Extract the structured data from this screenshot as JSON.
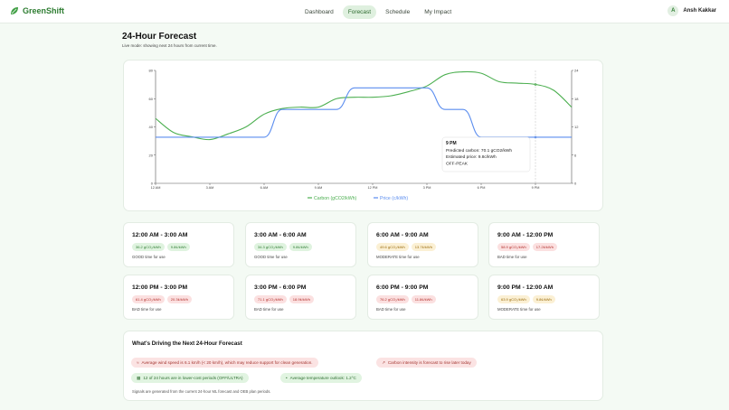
{
  "app": {
    "name": "GreenShift"
  },
  "nav": {
    "tabs": [
      {
        "label": "Dashboard",
        "active": false
      },
      {
        "label": "Forecast",
        "active": true
      },
      {
        "label": "Schedule",
        "active": false
      },
      {
        "label": "My Impact",
        "active": false
      }
    ]
  },
  "user": {
    "initial": "A",
    "name": "Ansh Kakkar"
  },
  "page": {
    "title": "24-Hour Forecast",
    "subtitle": "Live mode: showing next 24 hours from current time."
  },
  "colors": {
    "carbon": "#4caf50",
    "price": "#5b8def",
    "brand": "#2e7d32"
  },
  "chart_data": {
    "type": "line",
    "x": [
      "12 AM",
      "1 AM",
      "2 AM",
      "3 AM",
      "4 AM",
      "5 AM",
      "6 AM",
      "7 AM",
      "8 AM",
      "9 AM",
      "10 AM",
      "11 AM",
      "12 PM",
      "1 PM",
      "2 PM",
      "3 PM",
      "4 PM",
      "5 PM",
      "6 PM",
      "7 PM",
      "8 PM",
      "9 PM",
      "10 PM",
      "11 PM"
    ],
    "x_tick_labels": [
      "12 AM",
      "3 AM",
      "6 AM",
      "9 AM",
      "12 PM",
      "3 PM",
      "6 PM",
      "9 PM"
    ],
    "series": [
      {
        "name": "Carbon (gCO2/kWh)",
        "axis": "left",
        "color": "#4caf50",
        "values": [
          46,
          36,
          33,
          31,
          35,
          40,
          49,
          53,
          54,
          54,
          60,
          61,
          61,
          62,
          65,
          69,
          77,
          79,
          78,
          72,
          71,
          70.1,
          66,
          54
        ]
      },
      {
        "name": "Price (c/kWh)",
        "axis": "right",
        "color": "#5b8def",
        "values": [
          9.8,
          9.8,
          9.8,
          9.8,
          9.8,
          9.8,
          9.8,
          15.7,
          15.7,
          15.7,
          15.7,
          20.3,
          20.3,
          20.3,
          20.3,
          20.3,
          15.7,
          15.7,
          9.8,
          9.8,
          9.8,
          9.8,
          9.8,
          9.8
        ]
      }
    ],
    "y_left": {
      "ticks": [
        "0",
        "20",
        "40",
        "60",
        "80"
      ],
      "range": [
        0,
        80
      ]
    },
    "y_right": {
      "ticks": [
        "0",
        "6",
        "12",
        "18",
        "24"
      ],
      "range": [
        0,
        24
      ]
    },
    "grid": false,
    "legend_position": "bottom-center",
    "legend": [
      "Carbon (gCO2/kWh)",
      "Price (c/kWh)"
    ],
    "highlight_index": 21,
    "tooltip": {
      "title": "9 PM",
      "lines": [
        "Predicted carbon: 70.1 gCO2/kWh",
        "Estimated price: 9.8c/kWh",
        "OFF-PEAK"
      ]
    }
  },
  "slots": [
    {
      "title": "12:00 AM - 3:00 AM",
      "carbon": "36.2 gCO₂/kWh",
      "price": "9.8¢/kWh",
      "status": "GOOD time for use",
      "level": "good"
    },
    {
      "title": "3:00 AM - 6:00 AM",
      "carbon": "34.3 gCO₂/kWh",
      "price": "9.8¢/kWh",
      "status": "GOOD time for use",
      "level": "good"
    },
    {
      "title": "6:00 AM - 9:00 AM",
      "carbon": "49.6 gCO₂/kWh",
      "price": "13.7¢/kWh",
      "status": "MODERATE time for use",
      "level": "moderate"
    },
    {
      "title": "9:00 AM - 12:00 PM",
      "carbon": "58.9 gCO₂/kWh",
      "price": "17.2¢/kWh",
      "status": "BAD time for use",
      "level": "bad"
    },
    {
      "title": "12:00 PM - 3:00 PM",
      "carbon": "61.4 gCO₂/kWh",
      "price": "20.3¢/kWh",
      "status": "BAD time for use",
      "level": "bad"
    },
    {
      "title": "3:00 PM - 6:00 PM",
      "carbon": "71.1 gCO₂/kWh",
      "price": "18.9¢/kWh",
      "status": "BAD time for use",
      "level": "bad"
    },
    {
      "title": "6:00 PM - 9:00 PM",
      "carbon": "76.2 gCO₂/kWh",
      "price": "11.8¢/kWh",
      "status": "BAD time for use",
      "level": "bad"
    },
    {
      "title": "9:00 PM - 12:00 AM",
      "carbon": "63.9 gCO₂/kWh",
      "price": "9.8¢/kWh",
      "status": "MODERATE time for use",
      "level": "moderate"
    }
  ],
  "drivers": {
    "title": "What's Driving the Next 24-Hour Forecast",
    "pills": [
      {
        "icon": "wind-icon",
        "glyph": "≈",
        "text": "Average wind speed is 6.1 km/h (< 20 km/h), which may reduce support for clean generation.",
        "level": "bad"
      },
      {
        "icon": "trend-up-icon",
        "glyph": "↗",
        "text": "Carbon intensity is forecast to rise later today",
        "level": "bad"
      },
      {
        "icon": "calendar-icon",
        "glyph": "▦",
        "text": "12 of 24 hours are in lower-cost periods (OFF/ULTRA)",
        "level": "good"
      },
      {
        "icon": "thermometer-icon",
        "glyph": "•",
        "text": "Average temperature outlook: 1.2°C",
        "level": "good"
      }
    ],
    "note": "Signals are generated from the current 24-hour ML forecast and OEB plan periods."
  }
}
